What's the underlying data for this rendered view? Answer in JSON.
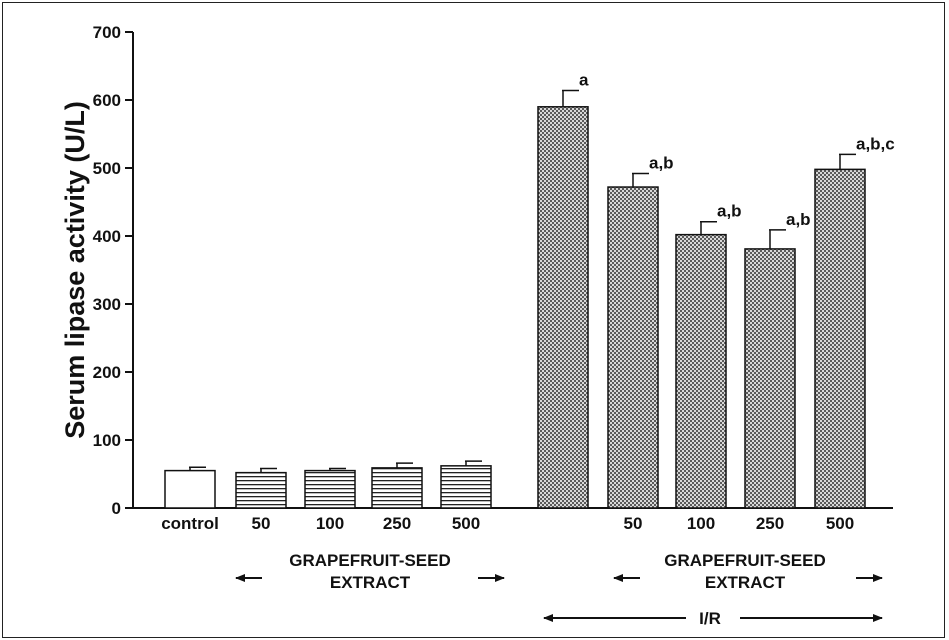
{
  "chart_data": {
    "type": "bar",
    "ylabel": "Serum lipase activity (U/L)",
    "ylim": [
      0,
      700
    ],
    "yticks": [
      0,
      100,
      200,
      300,
      400,
      500,
      600,
      700
    ],
    "categories": [
      "control",
      "50",
      "100",
      "250",
      "500",
      "",
      "50",
      "100",
      "250",
      "500"
    ],
    "values": [
      55,
      52,
      55,
      59,
      62,
      590,
      472,
      402,
      381,
      498
    ],
    "errors": [
      5,
      6,
      3,
      7,
      7,
      24,
      20,
      19,
      28,
      22
    ],
    "patterns": [
      "white",
      "hlines",
      "hlines",
      "hlines",
      "hlines",
      "crosshatch",
      "crosshatch",
      "crosshatch",
      "crosshatch",
      "crosshatch"
    ],
    "annotations": [
      "",
      "",
      "",
      "",
      "",
      "a",
      "a,b",
      "a,b",
      "a,b",
      "a,b,c"
    ],
    "groups": [
      {
        "line1": "GRAPEFRUIT-SEED",
        "line2": "EXTRACT",
        "from": 1,
        "to": 4
      },
      {
        "line1": "GRAPEFRUIT-SEED",
        "line2": "EXTRACT",
        "from": 6,
        "to": 9
      },
      {
        "line1": "I/R",
        "line2": "",
        "from": 5,
        "to": 9
      }
    ]
  }
}
